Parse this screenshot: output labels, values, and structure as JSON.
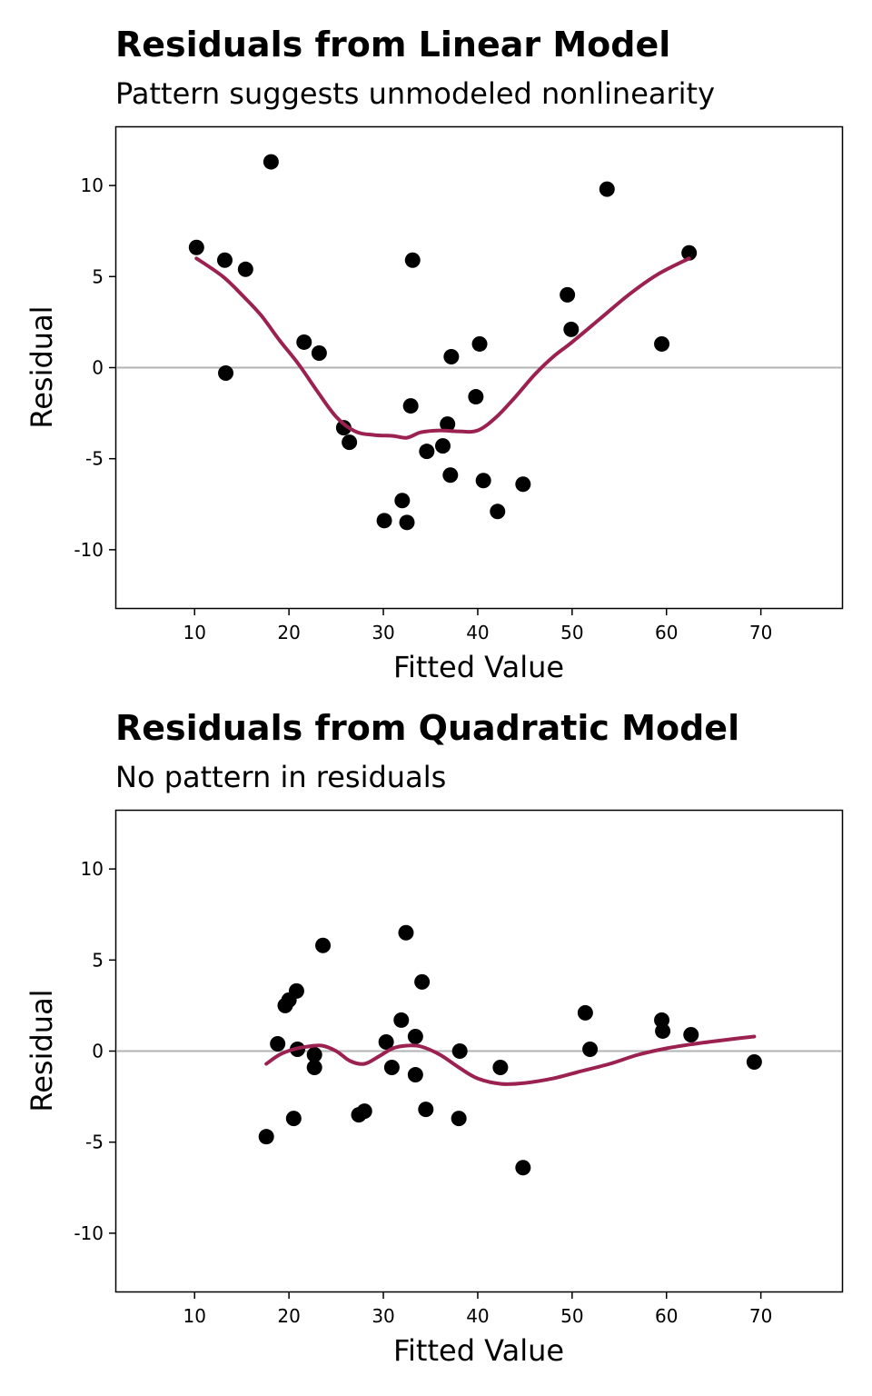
{
  "colors": {
    "points": "#000000",
    "smooth": "#9b2150",
    "zero_line": "#b3b3b3",
    "frame": "#000000"
  },
  "chart_data": [
    {
      "type": "scatter",
      "title": "Residuals from Linear Model",
      "subtitle": "Pattern suggests unmodeled nonlinearity",
      "xlabel": "Fitted Value",
      "ylabel": "Residual",
      "xlim": [
        1.7,
        78.6
      ],
      "ylim": [
        -13.2,
        13.2
      ],
      "xticks": [
        10,
        20,
        30,
        40,
        50,
        60,
        70
      ],
      "yticks": [
        10,
        5,
        0,
        -5,
        -10
      ],
      "ytick_labels": [
        "10",
        "5",
        "0",
        "-5",
        "-10"
      ],
      "reference_line_y": 0,
      "grid": false,
      "points": [
        {
          "x": 10.2,
          "y": 6.6
        },
        {
          "x": 13.2,
          "y": 5.9
        },
        {
          "x": 13.3,
          "y": -0.3
        },
        {
          "x": 15.4,
          "y": 5.4
        },
        {
          "x": 18.1,
          "y": 11.3
        },
        {
          "x": 21.6,
          "y": 1.4
        },
        {
          "x": 23.2,
          "y": 0.8
        },
        {
          "x": 25.8,
          "y": -3.3
        },
        {
          "x": 26.4,
          "y": -4.1
        },
        {
          "x": 30.1,
          "y": -8.4
        },
        {
          "x": 32.0,
          "y": -7.3
        },
        {
          "x": 32.5,
          "y": -8.5
        },
        {
          "x": 32.9,
          "y": -2.1
        },
        {
          "x": 33.1,
          "y": 5.9
        },
        {
          "x": 34.6,
          "y": -4.6
        },
        {
          "x": 36.3,
          "y": -4.3
        },
        {
          "x": 36.8,
          "y": -3.1
        },
        {
          "x": 37.1,
          "y": -5.9
        },
        {
          "x": 37.2,
          "y": 0.6
        },
        {
          "x": 39.8,
          "y": -1.6
        },
        {
          "x": 40.2,
          "y": 1.3
        },
        {
          "x": 40.6,
          "y": -6.2
        },
        {
          "x": 42.1,
          "y": -7.9
        },
        {
          "x": 44.8,
          "y": -6.4
        },
        {
          "x": 49.5,
          "y": 4.0
        },
        {
          "x": 49.9,
          "y": 2.1
        },
        {
          "x": 53.7,
          "y": 9.8
        },
        {
          "x": 59.5,
          "y": 1.3
        },
        {
          "x": 62.4,
          "y": 6.3
        }
      ],
      "smooth": {
        "x": [
          10.2,
          13,
          15,
          17,
          19,
          21,
          23,
          25,
          27,
          29,
          31,
          32.5,
          34,
          36,
          38,
          40,
          42,
          44,
          46,
          48,
          50,
          53,
          56,
          59,
          62.4
        ],
        "y": [
          6.0,
          5.0,
          4.0,
          2.9,
          1.5,
          0.2,
          -1.3,
          -2.7,
          -3.5,
          -3.7,
          -3.75,
          -3.85,
          -3.55,
          -3.45,
          -3.5,
          -3.45,
          -2.7,
          -1.6,
          -0.4,
          0.6,
          1.4,
          2.7,
          4.0,
          5.1,
          6.0
        ]
      }
    },
    {
      "type": "scatter",
      "title": "Residuals from Quadratic Model",
      "subtitle": "No pattern in residuals",
      "xlabel": "Fitted Value",
      "ylabel": "Residual",
      "xlim": [
        1.7,
        78.6
      ],
      "ylim": [
        -13.2,
        13.2
      ],
      "xticks": [
        10,
        20,
        30,
        40,
        50,
        60,
        70
      ],
      "yticks": [
        10,
        5,
        0,
        -5,
        -10
      ],
      "ytick_labels": [
        "10",
        "5",
        "0",
        "-5",
        "-10"
      ],
      "reference_line_y": 0,
      "grid": false,
      "points": [
        {
          "x": 17.6,
          "y": -4.7
        },
        {
          "x": 18.8,
          "y": 0.4
        },
        {
          "x": 19.6,
          "y": 2.5
        },
        {
          "x": 20.0,
          "y": 2.8
        },
        {
          "x": 20.5,
          "y": -3.7
        },
        {
          "x": 20.8,
          "y": 3.3
        },
        {
          "x": 20.9,
          "y": 0.1
        },
        {
          "x": 22.7,
          "y": -0.2
        },
        {
          "x": 22.7,
          "y": -0.9
        },
        {
          "x": 23.6,
          "y": 5.8
        },
        {
          "x": 27.4,
          "y": -3.5
        },
        {
          "x": 28.0,
          "y": -3.3
        },
        {
          "x": 30.3,
          "y": 0.5
        },
        {
          "x": 30.9,
          "y": -0.9
        },
        {
          "x": 31.9,
          "y": 1.7
        },
        {
          "x": 32.4,
          "y": 6.5
        },
        {
          "x": 33.4,
          "y": 0.8
        },
        {
          "x": 33.4,
          "y": -1.3
        },
        {
          "x": 34.1,
          "y": 3.8
        },
        {
          "x": 34.5,
          "y": -3.2
        },
        {
          "x": 38.0,
          "y": -3.7
        },
        {
          "x": 38.1,
          "y": 0.0
        },
        {
          "x": 42.4,
          "y": -0.9
        },
        {
          "x": 44.8,
          "y": -6.4
        },
        {
          "x": 51.4,
          "y": 2.1
        },
        {
          "x": 51.9,
          "y": 0.1
        },
        {
          "x": 59.5,
          "y": 1.7
        },
        {
          "x": 59.6,
          "y": 1.1
        },
        {
          "x": 62.6,
          "y": 0.9
        },
        {
          "x": 69.3,
          "y": -0.6
        }
      ],
      "smooth": {
        "x": [
          17.6,
          19,
          20.5,
          22,
          23.5,
          25,
          26.5,
          28,
          29.5,
          31,
          32.5,
          34,
          36,
          38,
          40,
          42.5,
          45,
          48,
          51,
          54,
          57,
          60,
          63,
          66,
          69.3
        ],
        "y": [
          -0.7,
          -0.2,
          0.1,
          0.25,
          0.3,
          0.0,
          -0.55,
          -0.7,
          -0.3,
          0.15,
          0.3,
          0.25,
          -0.2,
          -0.9,
          -1.5,
          -1.8,
          -1.75,
          -1.5,
          -1.1,
          -0.7,
          -0.2,
          0.15,
          0.4,
          0.6,
          0.8
        ]
      }
    }
  ]
}
